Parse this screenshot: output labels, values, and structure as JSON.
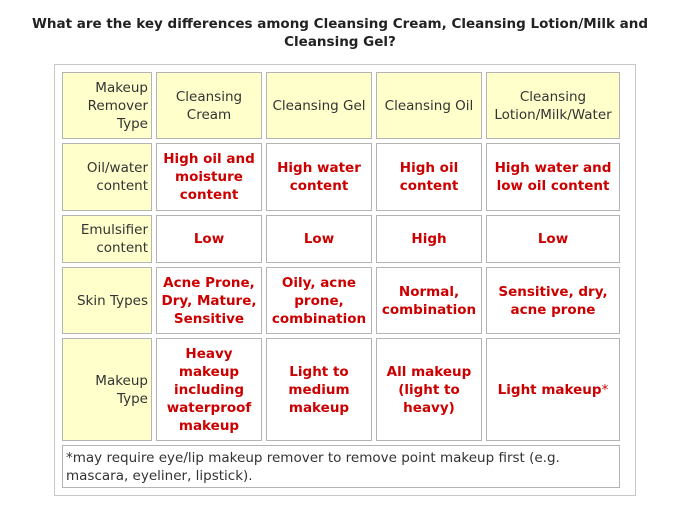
{
  "title": "What are the key differences among Cleansing Cream, Cleansing Lotion/Milk and Cleansing Gel?",
  "table": {
    "corner_label": "Makeup Remover Type",
    "columns": [
      "Cleansing Cream",
      "Cleansing Gel",
      "Cleansing Oil",
      "Cleansing Lotion/Milk/Water"
    ],
    "rows": [
      {
        "label": "Oil/water content",
        "cells": [
          "High oil and moisture content",
          "High water content",
          "High oil content",
          "High water and low oil content"
        ]
      },
      {
        "label": "Emulsifier content",
        "cells": [
          "Low",
          "Low",
          "High",
          "Low"
        ]
      },
      {
        "label": "Skin Types",
        "cells": [
          "Acne Prone, Dry, Mature, Sensitive",
          "Oily, acne prone, combination",
          "Normal, combination",
          "Sensitive, dry, acne prone"
        ]
      },
      {
        "label": "Makeup Type",
        "cells": [
          "Heavy makeup including waterproof makeup",
          "Light to medium makeup",
          "All makeup (light to heavy)",
          "Light makeup"
        ]
      }
    ],
    "asterisk": "*",
    "footnote": "*may require eye/lip makeup remover to remove point makeup first (e.g. mascara, eyeliner, lipstick)."
  },
  "colors": {
    "header_bg": "#ffffcc",
    "value_text": "#cc0000",
    "cell_border": "#b4b4b4"
  }
}
